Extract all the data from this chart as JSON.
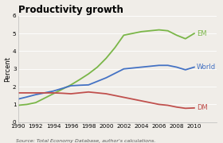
{
  "title": "Productivity growth",
  "ylabel": "Percent",
  "source": "Source: Total Economy Database, author's calculations.",
  "years": [
    1990,
    1991,
    1992,
    1993,
    1994,
    1995,
    1996,
    1997,
    1998,
    1999,
    2000,
    2001,
    2002,
    2003,
    2004,
    2005,
    2006,
    2007,
    2008,
    2009,
    2010
  ],
  "EM": [
    0.95,
    1.0,
    1.1,
    1.35,
    1.6,
    1.85,
    2.1,
    2.4,
    2.72,
    3.1,
    3.6,
    4.2,
    4.9,
    5.0,
    5.1,
    5.15,
    5.2,
    5.15,
    4.9,
    4.7,
    5.0
  ],
  "World": [
    1.3,
    1.42,
    1.55,
    1.65,
    1.75,
    1.9,
    2.05,
    2.08,
    2.1,
    2.3,
    2.5,
    2.75,
    3.0,
    3.05,
    3.1,
    3.15,
    3.2,
    3.2,
    3.1,
    2.95,
    3.1
  ],
  "DM": [
    1.65,
    1.65,
    1.65,
    1.65,
    1.65,
    1.63,
    1.6,
    1.65,
    1.7,
    1.65,
    1.6,
    1.5,
    1.4,
    1.3,
    1.2,
    1.1,
    1.0,
    0.95,
    0.85,
    0.78,
    0.8
  ],
  "colors": {
    "EM": "#7ab648",
    "World": "#4472c4",
    "DM": "#c0504d"
  },
  "ylim": [
    0,
    6
  ],
  "yticks": [
    0,
    1,
    2,
    3,
    4,
    5,
    6
  ],
  "xticks": [
    1990,
    1992,
    1994,
    1996,
    1998,
    2000,
    2002,
    2004,
    2006,
    2008,
    2010
  ],
  "background": "#f0ede8",
  "plot_bg": "#f0ede8",
  "title_fontsize": 8.5,
  "label_fontsize": 6.0,
  "tick_fontsize": 5.2,
  "source_fontsize": 4.5,
  "line_width": 1.3
}
